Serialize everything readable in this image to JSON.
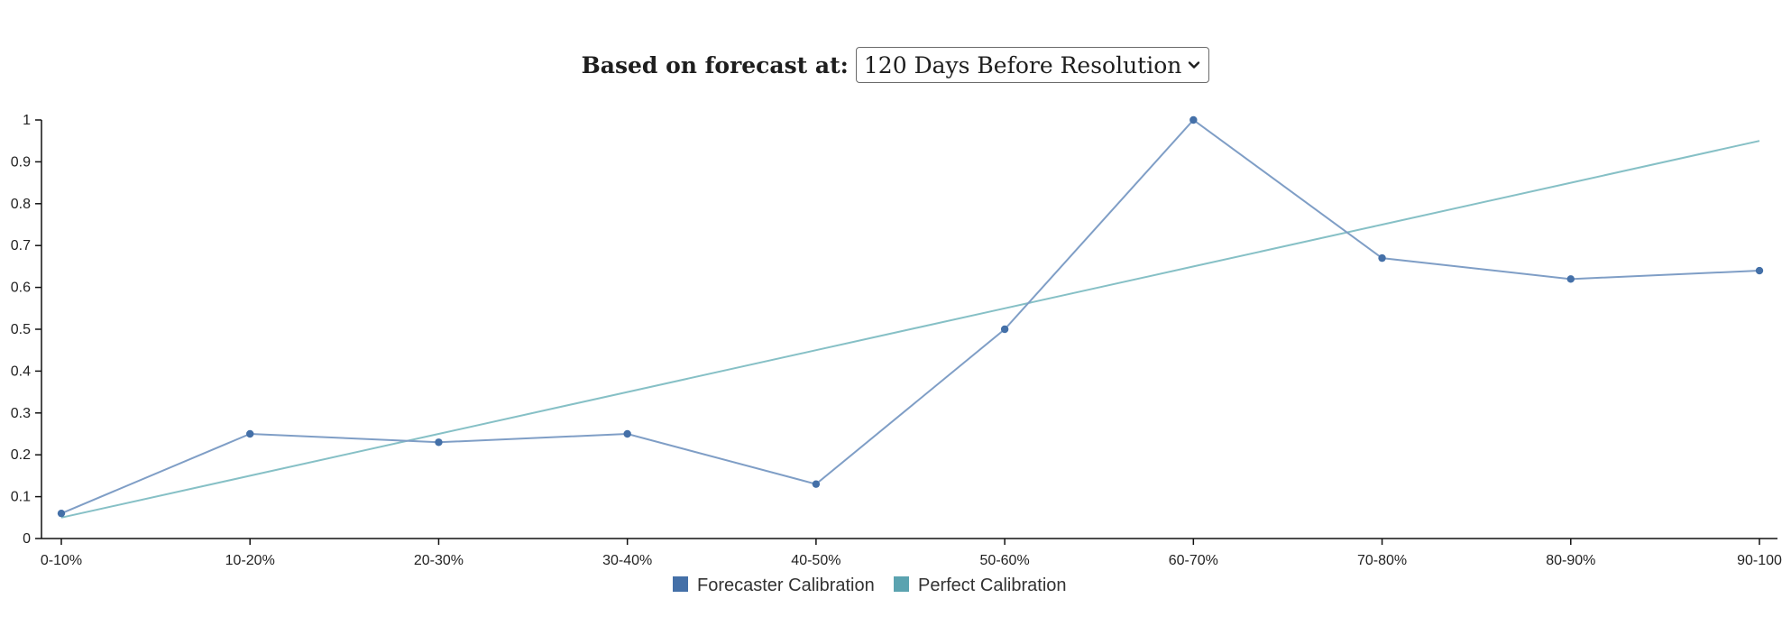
{
  "control": {
    "label": "Based on forecast at:",
    "selected": "120 Days Before Resolution"
  },
  "colors": {
    "forecaster": "#4470a8",
    "forecaster_line": "#7f9ec6",
    "perfect": "#5ba3b0",
    "perfect_line": "#86c0c6",
    "axis": "#111111"
  },
  "chart_data": {
    "type": "line",
    "categories": [
      "0-10%",
      "10-20%",
      "20-30%",
      "30-40%",
      "40-50%",
      "50-60%",
      "60-70%",
      "70-80%",
      "80-90%",
      "90-100"
    ],
    "ylim": [
      0,
      1
    ],
    "yticks": [
      "0",
      "0.1",
      "0.2",
      "0.3",
      "0.4",
      "0.5",
      "0.6",
      "0.7",
      "0.8",
      "0.9",
      "1"
    ],
    "series": [
      {
        "name": "Forecaster Calibration",
        "values": [
          0.06,
          0.25,
          0.23,
          0.25,
          0.13,
          0.5,
          1.0,
          0.67,
          0.62,
          0.64
        ],
        "markers": true
      },
      {
        "name": "Perfect Calibration",
        "values": [
          0.05,
          0.15,
          0.25,
          0.35,
          0.45,
          0.55,
          0.65,
          0.75,
          0.85,
          0.95
        ],
        "markers": false
      }
    ],
    "legend_position": "bottom-center",
    "grid": false
  }
}
